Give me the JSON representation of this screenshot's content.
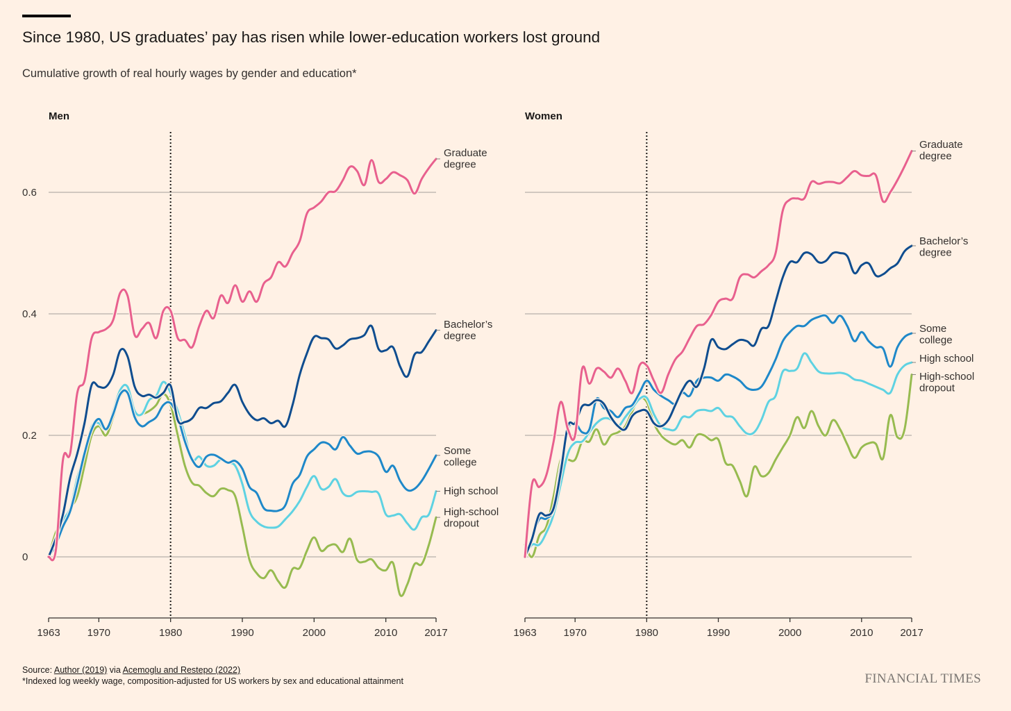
{
  "title": "Since 1980, US graduates’ pay has risen while lower-education workers lost ground",
  "subtitle": "Cumulative growth of real hourly wages by gender and education*",
  "footer": {
    "source_prefix": "Source: ",
    "source_link1": "Author (2019)",
    "source_mid": " via ",
    "source_link2": "Acemoglu and Restepo (2022)",
    "footnote": "*Indexed log weekly wage, composition-adjusted for US workers by sex and educational attainment"
  },
  "logo": "FINANCIAL TIMES",
  "colors": {
    "graduate": "#e8608e",
    "bachelors": "#0f4d8f",
    "some_college": "#1e88c9",
    "high_school": "#5ed2e2",
    "dropout": "#97bb50",
    "background": "#fff1e5",
    "grid": "#c2bbb3"
  },
  "chart_data": [
    {
      "type": "line",
      "title": "Men",
      "x": [
        1963,
        1964,
        1965,
        1966,
        1967,
        1968,
        1969,
        1970,
        1971,
        1972,
        1973,
        1974,
        1975,
        1976,
        1977,
        1978,
        1979,
        1980,
        1981,
        1982,
        1983,
        1984,
        1985,
        1986,
        1987,
        1988,
        1989,
        1990,
        1991,
        1992,
        1993,
        1994,
        1995,
        1996,
        1997,
        1998,
        1999,
        2000,
        2001,
        2002,
        2003,
        2004,
        2005,
        2006,
        2007,
        2008,
        2009,
        2010,
        2011,
        2012,
        2013,
        2014,
        2015,
        2016,
        2017
      ],
      "xticks": [
        1963,
        1970,
        1980,
        1990,
        2000,
        2010,
        2017
      ],
      "yticks": [
        0,
        0.2,
        0.4,
        0.6
      ],
      "ytick_labels": [
        "0",
        "0.2",
        "0.4",
        "0.6"
      ],
      "ylim": [
        -0.1,
        0.7
      ],
      "marker_year": 1980,
      "series": [
        {
          "name": "Graduate degree",
          "label_lines": [
            "Graduate",
            "degree"
          ],
          "color_key": "graduate",
          "values": [
            0,
            0.01,
            0.16,
            0.17,
            0.27,
            0.29,
            0.36,
            0.37,
            0.375,
            0.39,
            0.435,
            0.43,
            0.365,
            0.375,
            0.385,
            0.36,
            0.405,
            0.405,
            0.36,
            0.357,
            0.345,
            0.38,
            0.405,
            0.393,
            0.43,
            0.418,
            0.447,
            0.42,
            0.437,
            0.42,
            0.45,
            0.46,
            0.485,
            0.478,
            0.5,
            0.52,
            0.565,
            0.575,
            0.585,
            0.6,
            0.602,
            0.62,
            0.642,
            0.635,
            0.612,
            0.653,
            0.617,
            0.622,
            0.633,
            0.628,
            0.62,
            0.598,
            0.622,
            0.64,
            0.655
          ]
        },
        {
          "name": "Bachelor’s degree",
          "label_lines": [
            "Bachelor’s",
            "degree"
          ],
          "color_key": "bachelors",
          "values": [
            0,
            0.03,
            0.07,
            0.13,
            0.17,
            0.22,
            0.283,
            0.28,
            0.28,
            0.3,
            0.34,
            0.33,
            0.28,
            0.265,
            0.267,
            0.262,
            0.27,
            0.282,
            0.225,
            0.222,
            0.228,
            0.245,
            0.245,
            0.253,
            0.256,
            0.27,
            0.283,
            0.255,
            0.235,
            0.225,
            0.228,
            0.22,
            0.224,
            0.215,
            0.25,
            0.3,
            0.335,
            0.362,
            0.36,
            0.358,
            0.343,
            0.348,
            0.358,
            0.36,
            0.365,
            0.38,
            0.342,
            0.34,
            0.345,
            0.313,
            0.297,
            0.333,
            0.337,
            0.355,
            0.373
          ]
        },
        {
          "name": "Some college",
          "label_lines": [
            "Some",
            "college"
          ],
          "color_key": "some_college",
          "values": [
            0,
            0.02,
            0.05,
            0.075,
            0.12,
            0.17,
            0.21,
            0.227,
            0.21,
            0.235,
            0.268,
            0.27,
            0.23,
            0.215,
            0.222,
            0.23,
            0.25,
            0.253,
            0.23,
            0.19,
            0.16,
            0.148,
            0.165,
            0.168,
            0.162,
            0.155,
            0.158,
            0.145,
            0.115,
            0.105,
            0.08,
            0.076,
            0.076,
            0.085,
            0.12,
            0.135,
            0.165,
            0.177,
            0.188,
            0.186,
            0.177,
            0.197,
            0.183,
            0.17,
            0.173,
            0.173,
            0.165,
            0.14,
            0.15,
            0.125,
            0.11,
            0.112,
            0.125,
            0.145,
            0.167
          ]
        },
        {
          "name": "High school",
          "label_lines": [
            "High school"
          ],
          "color_key": "high_school",
          "values": [
            0,
            0.03,
            0.06,
            0.08,
            0.13,
            0.17,
            0.215,
            0.22,
            0.21,
            0.24,
            0.275,
            0.28,
            0.24,
            0.235,
            0.258,
            0.265,
            0.288,
            0.27,
            0.24,
            0.2,
            0.16,
            0.165,
            0.15,
            0.15,
            0.16,
            0.155,
            0.15,
            0.12,
            0.075,
            0.058,
            0.05,
            0.048,
            0.05,
            0.062,
            0.075,
            0.092,
            0.115,
            0.133,
            0.112,
            0.115,
            0.128,
            0.105,
            0.1,
            0.107,
            0.108,
            0.107,
            0.104,
            0.07,
            0.068,
            0.07,
            0.055,
            0.045,
            0.065,
            0.07,
            0.108
          ]
        },
        {
          "name": "High-school dropout",
          "label_lines": [
            "High-school",
            "dropout"
          ],
          "color_key": "dropout",
          "values": [
            0,
            0.04,
            0.06,
            0.08,
            0.1,
            0.15,
            0.2,
            0.215,
            0.2,
            0.23,
            0.265,
            0.27,
            0.235,
            0.235,
            0.24,
            0.25,
            0.268,
            0.25,
            0.2,
            0.15,
            0.122,
            0.117,
            0.105,
            0.1,
            0.112,
            0.11,
            0.1,
            0.05,
            -0.005,
            -0.027,
            -0.035,
            -0.022,
            -0.04,
            -0.05,
            -0.02,
            -0.018,
            0.01,
            0.032,
            0.01,
            0.018,
            0.02,
            0.008,
            0.03,
            -0.005,
            -0.008,
            -0.004,
            -0.018,
            -0.022,
            -0.01,
            -0.063,
            -0.045,
            -0.012,
            -0.012,
            0.02,
            0.065
          ]
        }
      ]
    },
    {
      "type": "line",
      "title": "Women",
      "x": [
        1963,
        1964,
        1965,
        1966,
        1967,
        1968,
        1969,
        1970,
        1971,
        1972,
        1973,
        1974,
        1975,
        1976,
        1977,
        1978,
        1979,
        1980,
        1981,
        1982,
        1983,
        1984,
        1985,
        1986,
        1987,
        1988,
        1989,
        1990,
        1991,
        1992,
        1993,
        1994,
        1995,
        1996,
        1997,
        1998,
        1999,
        2000,
        2001,
        2002,
        2003,
        2004,
        2005,
        2006,
        2007,
        2008,
        2009,
        2010,
        2011,
        2012,
        2013,
        2014,
        2015,
        2016,
        2017
      ],
      "xticks": [
        1963,
        1970,
        1980,
        1990,
        2000,
        2010,
        2017
      ],
      "yticks": [
        0,
        0.2,
        0.4,
        0.6
      ],
      "ylim": [
        -0.1,
        0.7
      ],
      "marker_year": 1980,
      "series": [
        {
          "name": "Graduate degree",
          "label_lines": [
            "Graduate",
            "degree"
          ],
          "color_key": "graduate",
          "values": [
            0,
            0.12,
            0.115,
            0.135,
            0.19,
            0.255,
            0.21,
            0.2,
            0.31,
            0.285,
            0.31,
            0.305,
            0.295,
            0.31,
            0.29,
            0.27,
            0.315,
            0.315,
            0.29,
            0.27,
            0.3,
            0.325,
            0.338,
            0.36,
            0.38,
            0.383,
            0.398,
            0.42,
            0.425,
            0.425,
            0.46,
            0.465,
            0.46,
            0.47,
            0.48,
            0.5,
            0.57,
            0.588,
            0.59,
            0.59,
            0.617,
            0.614,
            0.617,
            0.617,
            0.615,
            0.625,
            0.635,
            0.628,
            0.627,
            0.628,
            0.585,
            0.6,
            0.62,
            0.643,
            0.668
          ]
        },
        {
          "name": "Bachelor’s degree",
          "label_lines": [
            "Bachelor’s",
            "degree"
          ],
          "color_key": "bachelors",
          "values": [
            0,
            0.03,
            0.07,
            0.068,
            0.08,
            0.14,
            0.215,
            0.22,
            0.248,
            0.25,
            0.258,
            0.252,
            0.23,
            0.215,
            0.21,
            0.232,
            0.24,
            0.24,
            0.22,
            0.215,
            0.225,
            0.25,
            0.275,
            0.29,
            0.28,
            0.31,
            0.357,
            0.345,
            0.342,
            0.35,
            0.357,
            0.355,
            0.348,
            0.375,
            0.38,
            0.42,
            0.46,
            0.485,
            0.485,
            0.5,
            0.498,
            0.485,
            0.487,
            0.5,
            0.5,
            0.495,
            0.467,
            0.48,
            0.483,
            0.463,
            0.465,
            0.475,
            0.483,
            0.503,
            0.512
          ]
        },
        {
          "name": "Some college",
          "label_lines": [
            "Some",
            "college"
          ],
          "color_key": "some_college",
          "values": [
            0,
            0.03,
            0.062,
            0.063,
            0.08,
            0.15,
            0.21,
            0.22,
            0.205,
            0.21,
            0.26,
            0.245,
            0.24,
            0.23,
            0.245,
            0.25,
            0.27,
            0.29,
            0.275,
            0.265,
            0.258,
            0.252,
            0.27,
            0.265,
            0.29,
            0.295,
            0.295,
            0.29,
            0.3,
            0.297,
            0.29,
            0.278,
            0.275,
            0.28,
            0.3,
            0.325,
            0.355,
            0.37,
            0.38,
            0.38,
            0.39,
            0.395,
            0.397,
            0.385,
            0.397,
            0.38,
            0.355,
            0.37,
            0.355,
            0.345,
            0.343,
            0.313,
            0.345,
            0.362,
            0.368
          ]
        },
        {
          "name": "High school",
          "label_lines": [
            "High school"
          ],
          "color_key": "high_school",
          "values": [
            0,
            0.02,
            0.02,
            0.04,
            0.07,
            0.12,
            0.17,
            0.188,
            0.19,
            0.205,
            0.22,
            0.228,
            0.226,
            0.215,
            0.23,
            0.245,
            0.26,
            0.262,
            0.235,
            0.215,
            0.21,
            0.21,
            0.23,
            0.23,
            0.24,
            0.242,
            0.24,
            0.245,
            0.232,
            0.23,
            0.215,
            0.203,
            0.205,
            0.225,
            0.255,
            0.265,
            0.305,
            0.306,
            0.31,
            0.335,
            0.32,
            0.305,
            0.302,
            0.302,
            0.303,
            0.3,
            0.292,
            0.29,
            0.285,
            0.28,
            0.275,
            0.27,
            0.3,
            0.315,
            0.32
          ]
        },
        {
          "name": "High-school dropout",
          "label_lines": [
            "High-school",
            "dropout"
          ],
          "color_key": "dropout",
          "values": [
            0.02,
            0,
            0.035,
            0.05,
            0.1,
            0.16,
            0.16,
            0.16,
            0.19,
            0.19,
            0.21,
            0.185,
            0.2,
            0.205,
            0.215,
            0.24,
            0.26,
            0.255,
            0.22,
            0.2,
            0.19,
            0.185,
            0.192,
            0.18,
            0.2,
            0.2,
            0.192,
            0.193,
            0.155,
            0.15,
            0.125,
            0.1,
            0.148,
            0.133,
            0.138,
            0.16,
            0.18,
            0.2,
            0.23,
            0.212,
            0.24,
            0.215,
            0.2,
            0.225,
            0.21,
            0.185,
            0.163,
            0.18,
            0.187,
            0.186,
            0.162,
            0.233,
            0.197,
            0.21,
            0.3
          ]
        }
      ]
    }
  ]
}
